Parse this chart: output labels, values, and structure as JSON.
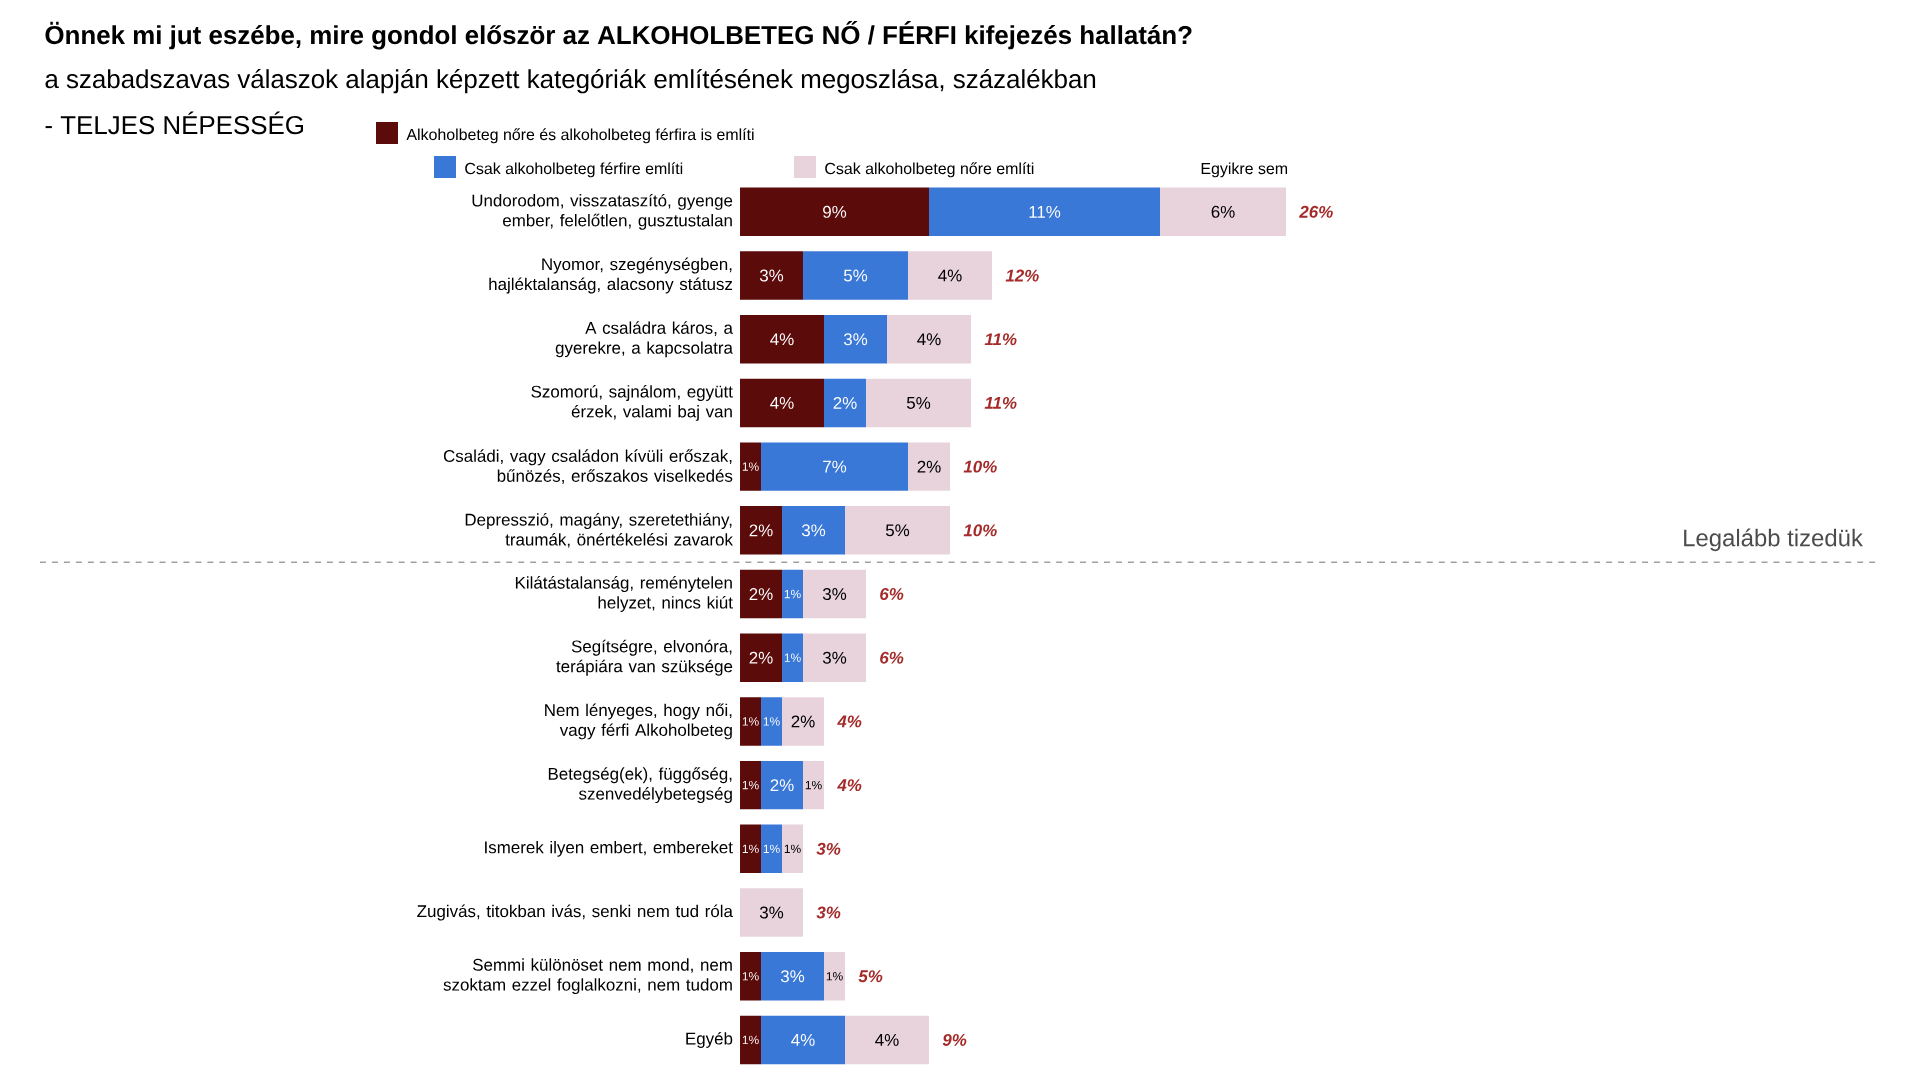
{
  "chart_data": {
    "type": "bar",
    "orientation": "horizontal",
    "stacked": true,
    "title": "Önnek mi jut eszébe, mire gondol először az ALKOHOLBETEG NŐ / FÉRFI kifejezés hallatán?",
    "subtitle": "a szabadszavas válaszok alapján képzett kategóriák említésének megoszlása, százalékban",
    "annotations": [
      "- TELJES NÉPESSÉG",
      "Legalább tizedük"
    ],
    "categories": [
      "Undorodom, visszataszító, gyenge ember, felelőtlen, gusztustalan",
      "Nyomor, szegénységben, hajléktalanság, alacsony státusz",
      "A családra káros, a gyerekre, a kapcsolatra",
      "Szomorú, sajnálom, együtt érzek, valami baj van",
      "Családi, vagy családon kívüli erőszak, bűnözés, erőszakos viselkedés",
      "Depresszió, magány, szeretethiány, traumák, önértékelési zavarok",
      "Kilátástalanság, reménytelen helyzet, nincs kiút",
      "Segítségre, elvonóra, terápiára van szüksége",
      "Nem lényeges, hogy női, vagy férfi Alkoholbeteg",
      "Betegség(ek), függőség, szenvedélybetegség",
      "Ismerek ilyen embert, embereket",
      "Zugivás, titokban ivás, senki nem tud róla",
      "Semmi különöset nem mond, nem szoktam ezzel foglalkozni, nem tudom",
      "Egyéb"
    ],
    "series": [
      {
        "name": "Alkoholbeteg nőre és alkoholbeteg férfira is említi",
        "color": "#5c0b0b",
        "values": [
          9,
          3,
          4,
          4,
          1,
          2,
          2,
          2,
          1,
          1,
          1,
          null,
          1,
          1
        ],
        "value_labels": [
          "9%",
          "3%",
          "4%",
          "4%",
          "1%",
          "2%",
          "2%",
          "2%",
          "1%",
          "1%",
          "1%",
          null,
          "1%",
          "1%"
        ]
      },
      {
        "name": "Csak alkoholbeteg férfire említi",
        "color": "#3a78d8",
        "values": [
          11,
          5,
          3,
          2,
          7,
          3,
          1,
          1,
          1,
          2,
          1,
          null,
          3,
          4
        ],
        "value_labels": [
          "11%",
          "5%",
          "3%",
          "2%",
          "7%",
          "3%",
          "1%",
          "1%",
          "1%",
          "2%",
          "1%",
          null,
          "3%",
          "4%"
        ]
      },
      {
        "name": "Csak alkoholbeteg nőre említi",
        "color": "#e8d3dc",
        "values": [
          6,
          4,
          4,
          5,
          2,
          5,
          3,
          3,
          2,
          1,
          1,
          3,
          1,
          4
        ],
        "value_labels": [
          "6%",
          "4%",
          "4%",
          "5%",
          "2%",
          "5%",
          "3%",
          "3%",
          "2%",
          "1%",
          "1%",
          "3%",
          "1%",
          "4%"
        ]
      },
      {
        "name": "Egyikre sem",
        "values": [
          null,
          null,
          null,
          null,
          null,
          null,
          null,
          null,
          null,
          null,
          null,
          null,
          null,
          null
        ]
      }
    ],
    "totals": [
      "26%",
      "12%",
      "11%",
      "11%",
      "10%",
      "10%",
      "6%",
      "6%",
      "4%",
      "4%",
      "3%",
      "3%",
      "5%",
      "9%"
    ],
    "legend": "top"
  }
}
